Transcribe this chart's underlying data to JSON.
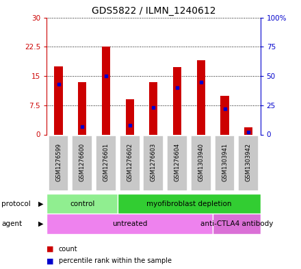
{
  "title": "GDS5822 / ILMN_1240612",
  "samples": [
    "GSM1276599",
    "GSM1276600",
    "GSM1276601",
    "GSM1276602",
    "GSM1276603",
    "GSM1276604",
    "GSM1303940",
    "GSM1303941",
    "GSM1303942"
  ],
  "counts": [
    17.5,
    13.5,
    22.5,
    9.0,
    13.5,
    17.2,
    19.0,
    10.0,
    1.8
  ],
  "percentile_ranks": [
    43,
    7,
    50,
    8,
    23,
    40,
    45,
    22,
    2
  ],
  "ylim_left": [
    0,
    30
  ],
  "ylim_right": [
    0,
    100
  ],
  "yticks_left": [
    0,
    7.5,
    15,
    22.5,
    30
  ],
  "yticks_right": [
    0,
    25,
    50,
    75,
    100
  ],
  "yticklabels_left": [
    "0",
    "7.5",
    "15",
    "22.5",
    "30"
  ],
  "yticklabels_right": [
    "0",
    "25",
    "50",
    "75",
    "100%"
  ],
  "bar_color": "#cc0000",
  "dot_color": "#0000cc",
  "bar_width": 0.35,
  "protocol_groups": [
    {
      "label": "control",
      "start": 0,
      "end": 3,
      "color": "#90ee90"
    },
    {
      "label": "myofibroblast depletion",
      "start": 3,
      "end": 9,
      "color": "#32cd32"
    }
  ],
  "agent_groups": [
    {
      "label": "untreated",
      "start": 0,
      "end": 7,
      "color": "#ee82ee"
    },
    {
      "label": "anti-CTLA4 antibody",
      "start": 7,
      "end": 9,
      "color": "#da70d6"
    }
  ],
  "legend_items": [
    {
      "label": "count",
      "color": "#cc0000"
    },
    {
      "label": "percentile rank within the sample",
      "color": "#0000cc"
    }
  ],
  "sample_box_color": "#c8c8c8",
  "left_axis_color": "#cc0000",
  "right_axis_color": "#0000cc"
}
